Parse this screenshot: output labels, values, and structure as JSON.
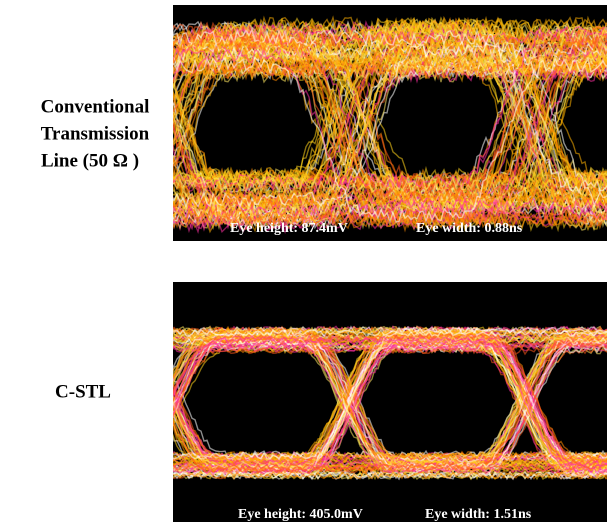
{
  "panels": [
    {
      "label_lines": [
        "Conventional",
        "Transmission",
        "Line  (50 Ω )"
      ],
      "eye_height": "Eye height: 87.4mV",
      "eye_width": "Eye width: 0.88ns"
    },
    {
      "label_lines": [
        "C-STL"
      ],
      "eye_height": "Eye height: 405.0mV",
      "eye_width": "Eye width: 1.51ns"
    }
  ]
}
